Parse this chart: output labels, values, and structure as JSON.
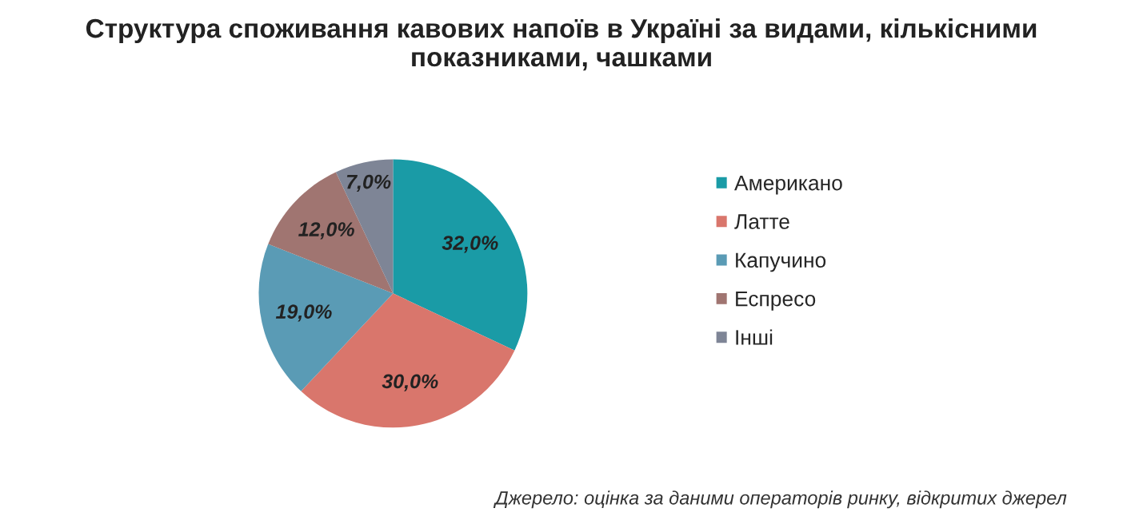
{
  "chart_data": {
    "type": "pie",
    "title": "Структура споживання кавових напоїв в Україні за видами, кількісними показниками, чашками",
    "categories": [
      "Американо",
      "Латте",
      "Капучино",
      "Еспресо",
      "Інші"
    ],
    "values": [
      32,
      30,
      19,
      12,
      7
    ],
    "value_labels": [
      "32,0%",
      "30,0%",
      "19,0%",
      "12,0%",
      "7,0%"
    ],
    "colors": [
      "#1a9ba6",
      "#d9766c",
      "#5a9bb5",
      "#a07571",
      "#7e8596"
    ],
    "legend": "right",
    "annotations": [
      "Джерело: оцінка за даними операторів ринку, відкритих джерел"
    ]
  }
}
